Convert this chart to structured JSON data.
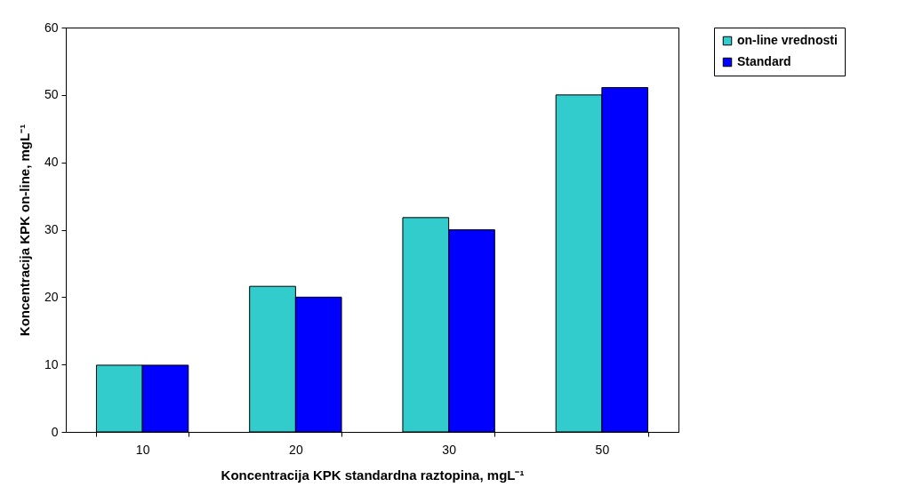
{
  "chart_data": {
    "type": "bar",
    "xlabel": "Koncentracija KPK standardna raztopina, mgL⁻¹",
    "ylabel": "Koncentracija KPK on-line, mgL⁻¹",
    "categories": [
      "10",
      "20",
      "30",
      "50"
    ],
    "series": [
      {
        "name": "on-line vrednosti",
        "color": "#33cccc",
        "values": [
          9.9,
          21.6,
          31.8,
          50
        ]
      },
      {
        "name": "Standard",
        "color": "#0000ff",
        "values": [
          9.9,
          20,
          30,
          51.1
        ]
      }
    ],
    "ylim": [
      0,
      60
    ],
    "yticks": [
      0,
      10,
      20,
      30,
      40,
      50,
      60
    ],
    "grid": false,
    "legend": "right"
  }
}
